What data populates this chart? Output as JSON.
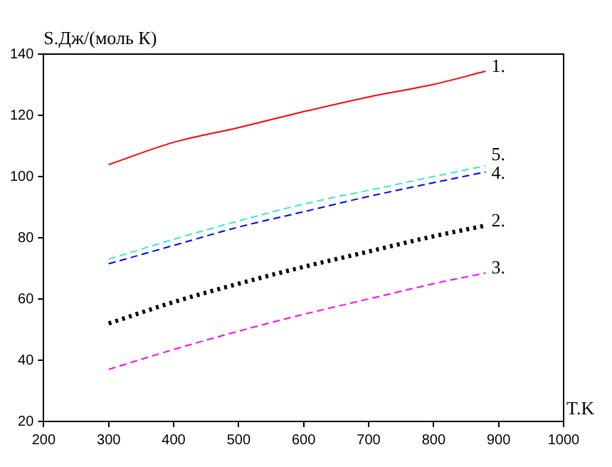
{
  "chart_data": {
    "type": "line",
    "ylabel": "S.Дж/(моль К)",
    "xlabel": "T.K",
    "x": [
      300,
      400,
      500,
      600,
      700,
      800,
      880
    ],
    "xlim": [
      200,
      1000
    ],
    "xticks": [
      200,
      300,
      400,
      500,
      600,
      700,
      800,
      900,
      1000
    ],
    "ylim": [
      20,
      140
    ],
    "yticks": [
      20,
      40,
      60,
      80,
      100,
      120,
      140
    ],
    "grid": false,
    "legend": false,
    "marker": "none",
    "series": [
      {
        "name": "1.",
        "color": "#ff0000",
        "line_style": "solid",
        "values": [
          103.9,
          111.2,
          116,
          121.2,
          126,
          130.1,
          134.4
        ]
      },
      {
        "name": "2.",
        "color": "#000000",
        "line_style": "dotted",
        "values": [
          52,
          59,
          65,
          70.5,
          75.5,
          80.5,
          84
        ]
      },
      {
        "name": "3.",
        "color": "#ff00ff",
        "line_style": "dashed",
        "values": [
          37,
          43.5,
          49.5,
          55,
          60,
          65,
          68.5
        ]
      },
      {
        "name": "4.",
        "color": "#0000ff",
        "line_style": "dashed",
        "values": [
          71.5,
          77.5,
          83.5,
          88.5,
          93.5,
          98,
          101.5
        ]
      },
      {
        "name": "5.",
        "color": "#33eecc",
        "line_style": "dashed",
        "values": [
          73,
          79.5,
          85.5,
          91,
          95.5,
          100,
          103.5
        ]
      }
    ]
  }
}
